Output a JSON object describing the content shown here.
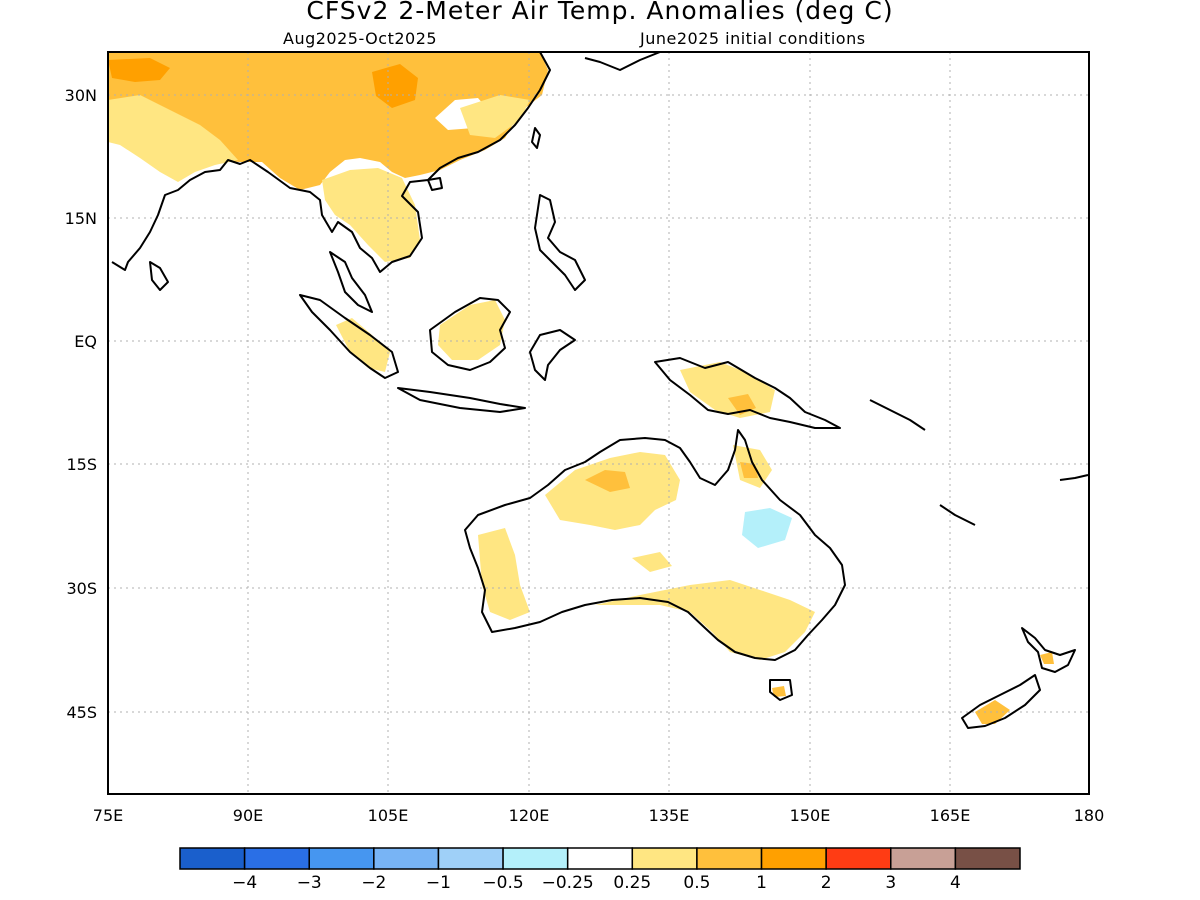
{
  "title": "CFSv2 2-Meter Air Temp. Anomalies (deg C)",
  "subtitle_left": "Aug2025-Oct2025",
  "subtitle_right": "June2025 initial conditions",
  "map": {
    "lon_ticks": [
      "75E",
      "90E",
      "105E",
      "120E",
      "135E",
      "150E",
      "165E",
      "180"
    ],
    "lat_ticks": [
      "30N",
      "15N",
      "EQ",
      "15S",
      "30S",
      "45S"
    ],
    "grid": true
  },
  "colorbar": {
    "colors": [
      "#1a5fcc",
      "#2a6fe6",
      "#4696f0",
      "#78b4f5",
      "#9fd0f8",
      "#b4f0fa",
      "#ffffff",
      "#ffe682",
      "#ffc03c",
      "#ffa000",
      "#ff3c14",
      "#c8a096",
      "#785046"
    ],
    "labels": [
      "-4",
      "-3",
      "-2",
      "-1",
      "-0.5",
      "-0.25",
      "0.25",
      "0.5",
      "1",
      "2",
      "3",
      "4"
    ]
  },
  "colors": {
    "light_orange": "#ffe682",
    "orange": "#ffc03c",
    "dark_orange": "#ffa000",
    "light_blue": "#b4f0fa"
  }
}
